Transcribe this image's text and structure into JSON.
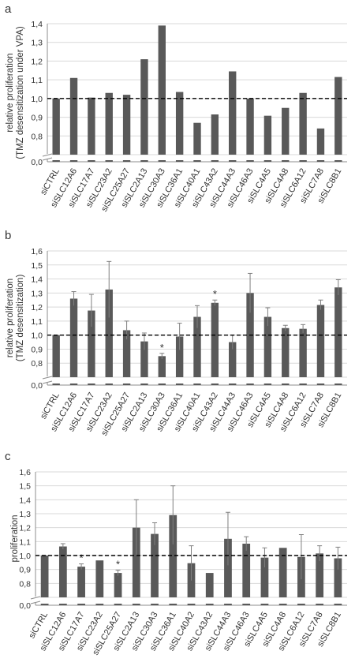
{
  "chart_data": [
    {
      "panel": "a",
      "type": "bar",
      "ylabel": [
        "relative proliferation",
        "(TMZ desensitization under VPA)"
      ],
      "ylim": [
        0.7,
        1.4
      ],
      "y_ticks": [
        "0,0",
        "0,8",
        "0,9",
        "1,0",
        "1,1",
        "1,2",
        "1,3",
        "1,4"
      ],
      "axis_break": true,
      "reference_line": 1.0,
      "grid": true,
      "categories": [
        "siCTRL",
        "siSLC12A6",
        "siSLC17A7",
        "siSLC23A2",
        "siSLC25A27",
        "siSLC2A13",
        "siSLC30A3",
        "siSLC36A1",
        "siSLC40A1",
        "siSLC43A2",
        "siSLC44A3",
        "siSLC46A3",
        "siSLC4A5",
        "siSLC4A8",
        "siSLC6A12",
        "siSLC7A8",
        "siSLC8B1"
      ],
      "values": [
        1.0,
        1.11,
        1.005,
        1.03,
        1.02,
        1.21,
        1.39,
        1.035,
        0.87,
        0.915,
        1.145,
        1.0,
        0.908,
        0.95,
        1.03,
        0.84,
        1.115
      ],
      "errors": [],
      "significance": []
    },
    {
      "panel": "b",
      "type": "bar",
      "ylabel": [
        "relative proliferation",
        "(TMZ desensitization)"
      ],
      "ylim": [
        0.7,
        1.6
      ],
      "y_ticks": [
        "0,0",
        "0,8",
        "0,9",
        "1,0",
        "1,1",
        "1,2",
        "1,3",
        "1,4",
        "1,5",
        "1,6"
      ],
      "axis_break": true,
      "reference_line": 1.0,
      "grid": true,
      "categories": [
        "siCTRL",
        "siSLC12A6",
        "siSLC17A7",
        "siSLC23A2",
        "siSLC25A27",
        "siSLC2A13",
        "siSLC30A3",
        "siSLC36A1",
        "siSLC40A1",
        "siSLC43A2",
        "siSLC44A3",
        "siSLC46A3",
        "siSLC4A5",
        "siSLC4A8",
        "siSLC6A12",
        "siSLC7A8",
        "siSLC8B1"
      ],
      "values": [
        1.0,
        1.26,
        1.175,
        1.325,
        1.035,
        0.955,
        0.85,
        0.99,
        1.13,
        1.23,
        0.95,
        1.3,
        1.13,
        1.05,
        1.045,
        1.215,
        1.34
      ],
      "errors": [
        0,
        0.05,
        0.115,
        0.2,
        0.065,
        0.06,
        0.02,
        0.095,
        0.08,
        0.02,
        0.05,
        0.14,
        0.065,
        0.02,
        0.03,
        0.035,
        0.055
      ],
      "significance": [
        {
          "category": "siSLC30A3",
          "label": "*"
        },
        {
          "category": "siSLC43A2",
          "label": "*"
        }
      ]
    },
    {
      "panel": "c",
      "type": "bar",
      "ylabel": [
        "proliferation"
      ],
      "ylim": [
        0.7,
        1.6
      ],
      "y_ticks": [
        "0,0",
        "0,8",
        "0,9",
        "1,0",
        "1,1",
        "1,2",
        "1,3",
        "1,4",
        "1,5",
        "1,6"
      ],
      "axis_break": true,
      "reference_line": 1.0,
      "grid": true,
      "categories": [
        "siCTRL",
        "siSLC12A6",
        "siSLC17A7",
        "siSLC23A2",
        "siSLC25A27",
        "siSLC2A13",
        "siSLC30A3",
        "siSLC36A1",
        "siSLC40A2",
        "siSLC43A2",
        "siSLC44A3",
        "siSLC46A3",
        "siSLC4A5",
        "siSLC4A8",
        "siSLC6A12",
        "siSLC7A8",
        "siSLC8B1"
      ],
      "values": [
        1.0,
        1.065,
        0.92,
        0.965,
        0.875,
        1.2,
        1.155,
        1.29,
        0.945,
        0.875,
        1.12,
        1.085,
        0.985,
        1.055,
        0.99,
        1.015,
        0.98
      ],
      "errors": [
        0,
        0.02,
        0.02,
        0,
        0.02,
        0.2,
        0.08,
        0.21,
        0.125,
        0,
        0.19,
        0.05,
        0.07,
        0,
        0.16,
        0.055,
        0.08
      ],
      "significance": [
        {
          "category": "siSLC17A7",
          "label": "*"
        },
        {
          "category": "siSLC25A27",
          "label": "*"
        }
      ]
    }
  ]
}
